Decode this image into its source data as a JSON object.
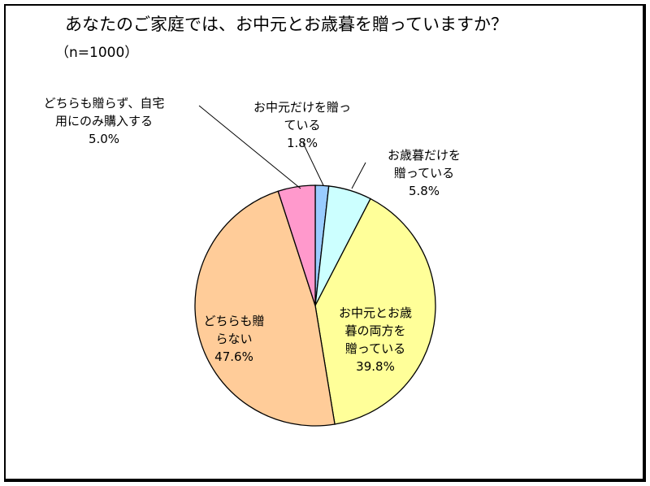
{
  "title": "あなたのご家庭では、お中元とお歳暮を贈っていますか？",
  "subtitle": "（n=1000）",
  "chart_data": {
    "type": "pie",
    "title": "あなたのご家庭では、お中元とお歳暮を贈っていますか？",
    "subtitle": "（n=1000）",
    "start_angle": "12 o'clock, clockwise",
    "slices": [
      {
        "label_lines": [
          "お中元だけを贈っ",
          "ている"
        ],
        "value": 1.8,
        "value_text": "1.8%",
        "color": "#99ccff"
      },
      {
        "label_lines": [
          "お歳暮だけを",
          "贈っている"
        ],
        "value": 5.8,
        "value_text": "5.8%",
        "color": "#ccffff"
      },
      {
        "label_lines": [
          "お中元とお歳",
          "暮の両方を",
          "贈っている"
        ],
        "value": 39.8,
        "value_text": "39.8%",
        "color": "#ffff99"
      },
      {
        "label_lines": [
          "どちらも贈",
          "らない"
        ],
        "value": 47.6,
        "value_text": "47.6%",
        "color": "#ffcc99"
      },
      {
        "label_lines": [
          "どちらも贈らず、自宅",
          "用にのみ購入する"
        ],
        "value": 5.0,
        "value_text": "5.0%",
        "color": "#ff99cc"
      }
    ]
  }
}
